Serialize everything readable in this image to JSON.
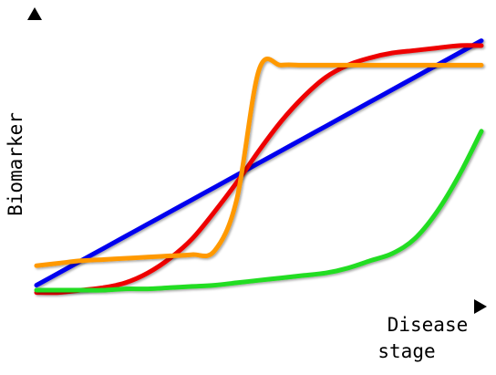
{
  "chart_data": {
    "type": "line",
    "title": "",
    "xlabel_lines": [
      "Disease",
      "stage"
    ],
    "ylabel": "Biomarker",
    "xlim": [
      0,
      1
    ],
    "ylim": [
      0,
      1
    ],
    "grid": false,
    "legend": "none",
    "x": [
      0,
      0.05,
      0.1,
      0.15,
      0.2,
      0.25,
      0.3,
      0.35,
      0.4,
      0.45,
      0.5,
      0.55,
      0.6,
      0.65,
      0.7,
      0.75,
      0.8,
      0.85,
      0.9,
      0.95,
      1.0
    ],
    "series": [
      {
        "color": "#0000ee",
        "values": [
          0.05,
          0.1,
          0.15,
          0.2,
          0.25,
          0.3,
          0.35,
          0.4,
          0.45,
          0.5,
          0.55,
          0.6,
          0.65,
          0.7,
          0.75,
          0.8,
          0.85,
          0.9,
          0.95,
          1.0,
          1.05
        ]
      },
      {
        "color": "#ee0000",
        "values": [
          0.02,
          0.02,
          0.03,
          0.04,
          0.06,
          0.1,
          0.16,
          0.24,
          0.35,
          0.47,
          0.6,
          0.72,
          0.82,
          0.9,
          0.95,
          0.98,
          1.0,
          1.01,
          1.02,
          1.03,
          1.03
        ]
      },
      {
        "color": "#ff9900",
        "values": [
          0.13,
          0.14,
          0.15,
          0.155,
          0.16,
          0.165,
          0.17,
          0.175,
          0.19,
          0.4,
          0.93,
          0.95,
          0.95,
          0.95,
          0.95,
          0.95,
          0.95,
          0.95,
          0.95,
          0.95,
          0.95
        ]
      },
      {
        "color": "#22dd22",
        "values": [
          0.03,
          0.03,
          0.03,
          0.03,
          0.035,
          0.035,
          0.04,
          0.045,
          0.05,
          0.06,
          0.07,
          0.08,
          0.09,
          0.1,
          0.12,
          0.15,
          0.18,
          0.24,
          0.35,
          0.5,
          0.68
        ]
      }
    ]
  }
}
